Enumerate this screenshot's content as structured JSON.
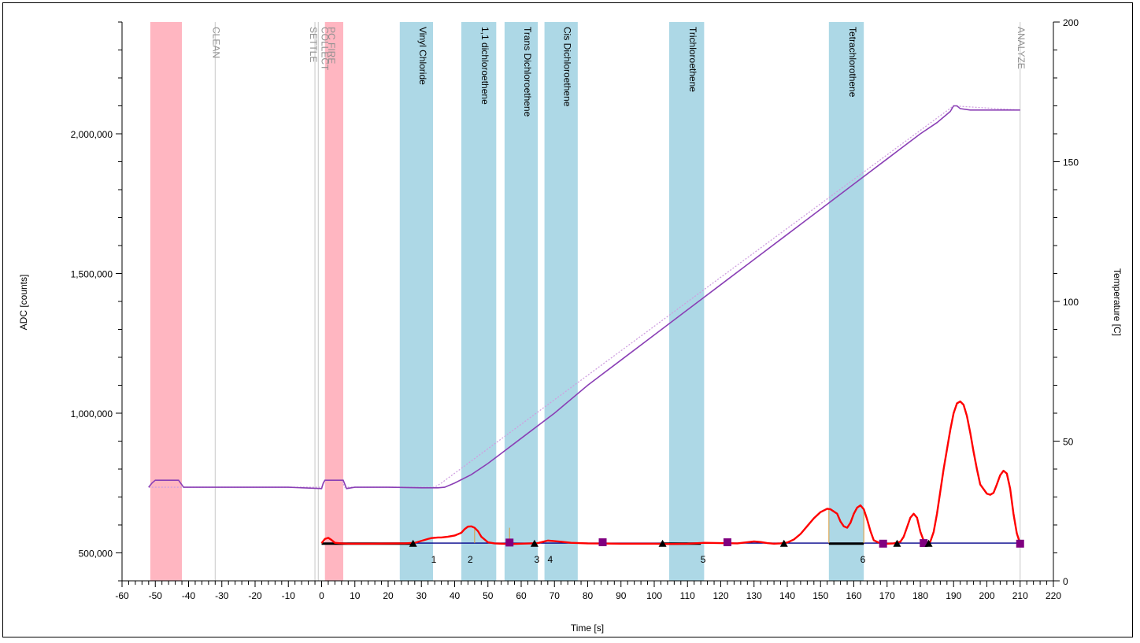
{
  "chart_data": {
    "type": "line",
    "title": "",
    "xlabel": "Time [s]",
    "ylabel_left": "ADC [counts]",
    "ylabel_right": "Temperature [C]",
    "xlim": [
      -60,
      220
    ],
    "ylim_left": [
      400000,
      2400000
    ],
    "ylim_right": [
      0,
      200
    ],
    "x_ticks": [
      -60,
      -50,
      -40,
      -30,
      -20,
      -10,
      0,
      10,
      20,
      30,
      40,
      50,
      60,
      70,
      80,
      90,
      100,
      110,
      120,
      130,
      140,
      150,
      160,
      170,
      180,
      190,
      200,
      210,
      220
    ],
    "y_left_ticks": [
      500000,
      1000000,
      1500000,
      2000000
    ],
    "y_left_tick_labels": [
      "500,000",
      "1,000,000",
      "1,500,000",
      "2,000,000"
    ],
    "y_right_ticks": [
      0,
      50,
      100,
      150,
      200
    ],
    "grid": false,
    "colors": {
      "phase_band": "#ffb6c1",
      "compound_band": "#add8e6",
      "adc_signal": "#ff0000",
      "temperature": "#8a3fb5",
      "temperature_setpoint": "#cf9fe0",
      "baseline": "#00008b",
      "square_marker": "#800080",
      "triangle_marker": "#000000",
      "phase_label": "#909090",
      "compound_label": "#000000"
    },
    "phase_bands": [
      {
        "start": -51.5,
        "end": -42
      },
      {
        "start": 1,
        "end": 6.5
      }
    ],
    "phase_lines": [
      {
        "x": -32,
        "label": "CLEAN"
      },
      {
        "x": -2,
        "label": "SETTLE"
      },
      {
        "x": -1,
        "label": "COLLECT"
      },
      {
        "x": 3,
        "label": "PC FIRE"
      },
      {
        "x": 210,
        "label": "ANALYZE"
      }
    ],
    "compound_bands": [
      {
        "start": 23.5,
        "end": 33.5,
        "label": "Vinyl Chloride"
      },
      {
        "start": 42,
        "end": 52.5,
        "label": "1,1 dichloroethene"
      },
      {
        "start": 55,
        "end": 65,
        "label": "Trans Dichloroethene"
      },
      {
        "start": 67,
        "end": 77,
        "label": "Cis Dichloroethene"
      },
      {
        "start": 104.5,
        "end": 115,
        "label": "Trichloroethene"
      },
      {
        "start": 152.5,
        "end": 163,
        "label": "Tetrachlorothene"
      }
    ],
    "peak_numbers": [
      {
        "x": 33,
        "label": "1"
      },
      {
        "x": 44,
        "label": "2"
      },
      {
        "x": 64,
        "label": "3"
      },
      {
        "x": 68,
        "label": "4"
      },
      {
        "x": 114,
        "label": "5"
      },
      {
        "x": 162,
        "label": "6"
      }
    ],
    "series": [
      {
        "name": "",
        "axis": "left",
        "x": [
          0,
          1,
          2,
          3,
          4,
          6,
          8,
          15,
          25,
          28,
          30,
          32,
          33,
          35,
          36,
          38,
          40,
          42,
          43,
          44,
          45,
          46,
          47,
          48,
          50,
          52,
          54,
          57,
          60,
          63,
          65,
          67,
          68,
          70,
          72,
          75,
          80,
          90,
          100,
          105,
          110,
          112,
          115,
          120,
          125,
          130,
          132,
          134,
          136,
          138,
          140,
          142,
          144,
          146,
          148,
          150,
          152,
          153,
          155,
          156,
          157,
          158,
          159,
          160,
          161,
          162,
          163,
          164,
          165,
          166,
          168,
          170,
          172,
          174,
          175,
          176,
          177,
          178,
          179,
          180,
          181,
          182,
          183,
          184,
          185,
          186,
          187,
          188,
          189,
          190,
          191,
          192,
          193,
          194,
          195,
          196,
          197,
          198,
          200,
          201,
          202,
          203,
          204,
          205,
          206,
          207,
          208,
          209,
          210
        ],
        "y": [
          535000,
          550000,
          554000,
          546000,
          536000,
          534000,
          533000,
          533000,
          534000,
          536000,
          543000,
          550000,
          553000,
          555000,
          555000,
          558000,
          562000,
          572000,
          585000,
          594000,
          595000,
          590000,
          578000,
          558000,
          538000,
          534000,
          533000,
          532000,
          533000,
          534000,
          535000,
          541000,
          544000,
          542000,
          540000,
          536000,
          534000,
          533000,
          533000,
          532000,
          533000,
          534000,
          536000,
          535000,
          534000,
          541000,
          539000,
          535000,
          533000,
          534000,
          537000,
          548000,
          568000,
          596000,
          624000,
          646000,
          658000,
          656000,
          640000,
          612000,
          595000,
          590000,
          608000,
          640000,
          662000,
          670000,
          656000,
          620000,
          578000,
          545000,
          534000,
          533000,
          534000,
          540000,
          558000,
          592000,
          626000,
          640000,
          626000,
          576000,
          544000,
          534000,
          540000,
          575000,
          640000,
          720000,
          800000,
          870000,
          940000,
          1000000,
          1035000,
          1042000,
          1030000,
          990000,
          930000,
          862000,
          800000,
          745000,
          712000,
          708000,
          715000,
          745000,
          778000,
          794000,
          784000,
          730000,
          640000,
          570000,
          533000
        ]
      },
      {
        "name": "",
        "axis": "right",
        "x": [
          -52,
          -51,
          -50,
          -45,
          -43,
          -41.5,
          -40,
          -30,
          -20,
          -10,
          0,
          0.5,
          1,
          2,
          5,
          6.5,
          7.5,
          10,
          20,
          30,
          35,
          37,
          40,
          45,
          50,
          60,
          70,
          80,
          90,
          100,
          110,
          120,
          130,
          140,
          150,
          160,
          170,
          180,
          185,
          189,
          190,
          191,
          192,
          195,
          200,
          205,
          210
        ],
        "y": [
          33.5,
          35,
          36,
          36,
          36,
          33.5,
          33.5,
          33.5,
          33.5,
          33.5,
          33,
          35,
          36,
          36,
          36,
          36,
          33,
          33.5,
          33.5,
          33.3,
          33.3,
          33.5,
          35,
          38,
          42,
          51,
          60,
          70,
          79,
          88,
          97,
          106,
          115,
          124,
          133,
          142,
          151,
          160,
          164,
          168,
          170,
          170,
          169,
          168.5,
          168.5,
          168.5,
          168.5
        ]
      },
      {
        "name": "",
        "axis": "right",
        "style": "dotted",
        "x": [
          -52,
          -42,
          -40,
          0,
          1,
          6,
          7,
          34,
          36,
          190,
          210
        ],
        "y": [
          33.5,
          33.5,
          33.5,
          33.5,
          36,
          36,
          33.5,
          33.5,
          35,
          170,
          168.5
        ]
      },
      {
        "name": "",
        "axis": "left",
        "x": [
          0,
          210
        ],
        "y": [
          535000,
          535000
        ]
      }
    ],
    "square_markers": [
      {
        "x": 56.5,
        "y": 537000
      },
      {
        "x": 84.5,
        "y": 538000
      },
      {
        "x": 122,
        "y": 538000
      },
      {
        "x": 168.8,
        "y": 533000
      },
      {
        "x": 181,
        "y": 535000
      },
      {
        "x": 210,
        "y": 533000
      }
    ],
    "triangle_markers": [
      {
        "x": 27.5,
        "y": 533000
      },
      {
        "x": 64,
        "y": 533000
      },
      {
        "x": 102.5,
        "y": 533000
      },
      {
        "x": 139,
        "y": 533000
      },
      {
        "x": 173,
        "y": 533000
      },
      {
        "x": 182.5,
        "y": 533000
      }
    ],
    "integration_segments": [
      {
        "x1": 0,
        "x2": 27.5
      },
      {
        "x1": 102.5,
        "x2": 114
      },
      {
        "x1": 152.5,
        "x2": 163
      }
    ]
  }
}
